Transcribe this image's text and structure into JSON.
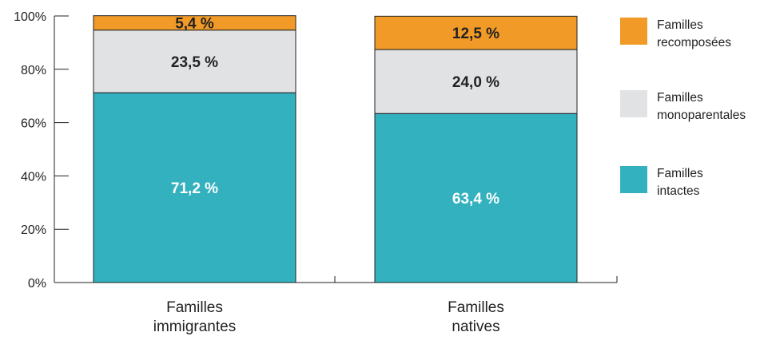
{
  "chart_data": {
    "type": "bar",
    "stacked": true,
    "percent": true,
    "categories": [
      [
        "Familles",
        "immigrantes"
      ],
      [
        "Familles",
        "natives"
      ]
    ],
    "ylim": [
      0,
      100
    ],
    "yticks": [
      {
        "value": 0,
        "label": "0%"
      },
      {
        "value": 20,
        "label": "20%"
      },
      {
        "value": 40,
        "label": "40%"
      },
      {
        "value": 60,
        "label": "60%"
      },
      {
        "value": 80,
        "label": "80%"
      },
      {
        "value": 100,
        "label": "100%"
      }
    ],
    "series": [
      {
        "name": [
          "Familles",
          "intactes"
        ],
        "color": "#33b1bf",
        "label_color": "#ffffff",
        "values": [
          71.2,
          63.4
        ],
        "labels": [
          "71,2 %",
          "63,4 %"
        ]
      },
      {
        "name": [
          "Familles",
          "monoparentales"
        ],
        "color": "#e1e2e4",
        "label_color": "#222222",
        "values": [
          23.5,
          24.0
        ],
        "labels": [
          "23,5 %",
          "24,0 %"
        ]
      },
      {
        "name": [
          "Familles",
          "recomposées"
        ],
        "color": "#f19a27",
        "label_color": "#222222",
        "values": [
          5.4,
          12.5
        ],
        "labels": [
          "5,4 %",
          "12,5 %"
        ]
      }
    ],
    "legend_position": "right",
    "grid": false
  }
}
